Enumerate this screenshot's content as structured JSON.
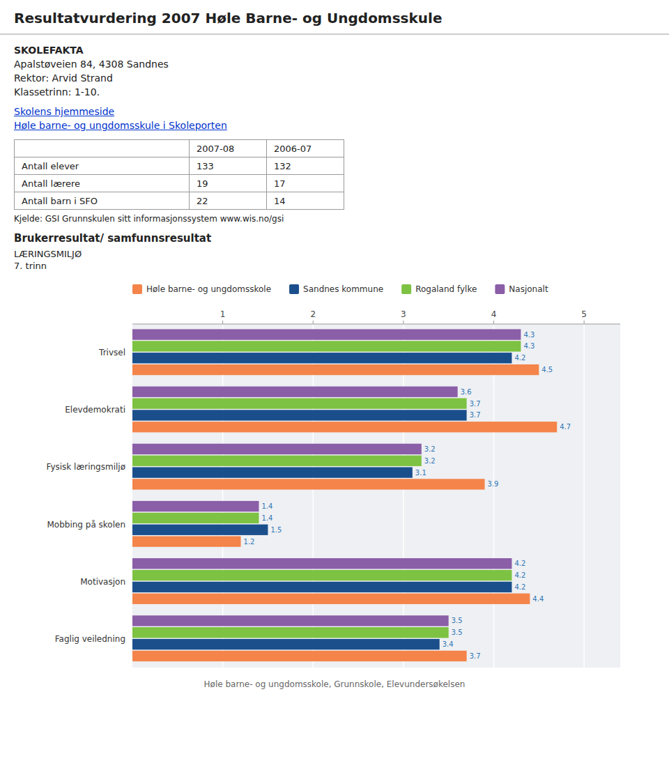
{
  "page": {
    "title": "Resultatvurdering 2007 Høle Barne- og Ungdomsskule",
    "school_info": [
      "SKOLEFAKTA",
      "Apalstøveien 84, 4308 Sandnes",
      "Rektor: Arvid Strand",
      "Klassetrinn: 1-10."
    ],
    "links": [
      "Skolens hjemmeside",
      "Høle barne- og ungdomsskule i Skoleporten"
    ],
    "table": {
      "headers": [
        null,
        "2007-08",
        "2006-07"
      ],
      "rows": [
        [
          "Antall elever",
          "133",
          "132"
        ],
        [
          "Antall lærere",
          "19",
          "17"
        ],
        [
          "Antall barn i SFO",
          "22",
          "14"
        ]
      ]
    },
    "source": "Kjelde: GSI Grunnskulen sitt informasjonssystem www.wis.no/gsi",
    "heading": "Brukerresultat/ samfunnsresultat",
    "section": "LÆRINGSMILJØ",
    "subsection": "7. trinn",
    "footer": "Høle barne- og ungdomsskole, Grunnskole, Elevundersøkelsen"
  },
  "chart_data": {
    "type": "bar",
    "orientation": "horizontal",
    "categories": [
      "Trivsel",
      "Elevdemokrati",
      "Fysisk læringsmiljø",
      "Mobbing på skolen",
      "Motivasjon",
      "Faglig veiledning"
    ],
    "series": [
      {
        "name": "Høle barne- og ungdomsskole",
        "color": "#F4844A",
        "values": [
          4.5,
          4.7,
          3.9,
          1.2,
          4.4,
          3.7
        ]
      },
      {
        "name": "Sandnes kommune",
        "color": "#1B4F8C",
        "values": [
          4.2,
          3.7,
          3.1,
          1.5,
          4.2,
          3.4
        ]
      },
      {
        "name": "Rogaland fylke",
        "color": "#7DC242",
        "values": [
          4.3,
          3.7,
          3.2,
          1.4,
          4.2,
          3.5
        ]
      },
      {
        "name": "Nasjonalt",
        "color": "#8B5EA8",
        "values": [
          4.3,
          3.6,
          3.2,
          1.4,
          4.2,
          3.5
        ]
      }
    ],
    "xlim": [
      0,
      5.4
    ],
    "xticks": [
      1,
      2,
      3,
      4,
      5
    ],
    "grid": true,
    "data_labels": true,
    "legend": "top"
  }
}
